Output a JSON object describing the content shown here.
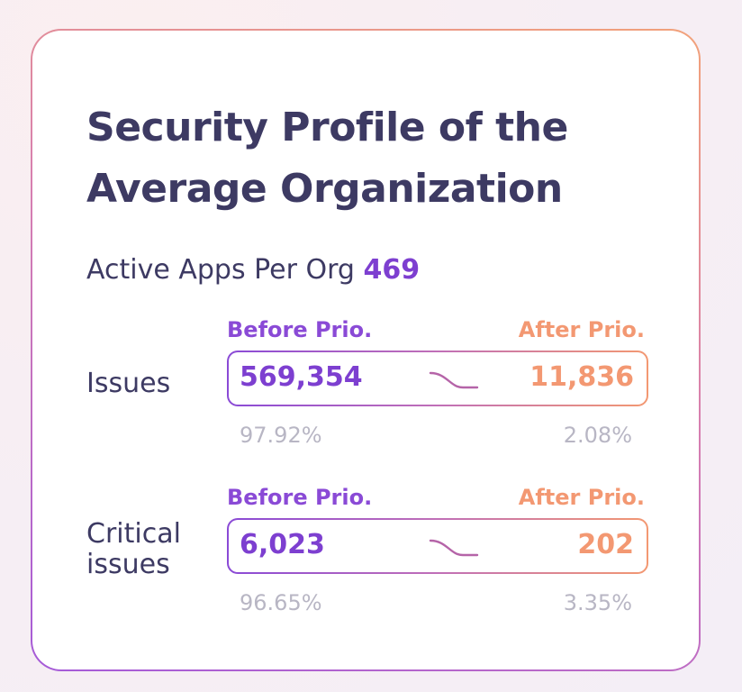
{
  "card": {
    "title_line1": "Security Profile of the",
    "title_line2": "Average Organization",
    "active_apps_label": "Active Apps Per Org",
    "active_apps_value": "469"
  },
  "rows": [
    {
      "label_line1": "Issues",
      "label_line2": "",
      "before_label": "Before Prio.",
      "after_label": "After Prio.",
      "before_value": "569,354",
      "after_value": "11,836",
      "before_pct": "97.92%",
      "after_pct": "2.08%"
    },
    {
      "label_line1": "Critical",
      "label_line2": "issues",
      "before_label": "Before Prio.",
      "after_label": "After Prio.",
      "before_value": "6,023",
      "after_value": "202",
      "before_pct": "96.65%",
      "after_pct": "3.35%"
    }
  ],
  "colors": {
    "title": "#3d3a63",
    "purple": "#7d3fd0",
    "orange": "#f39872",
    "muted": "#b8b6c4"
  },
  "icons": [
    "curve-arrow-icon",
    "curve-arrow-icon"
  ]
}
